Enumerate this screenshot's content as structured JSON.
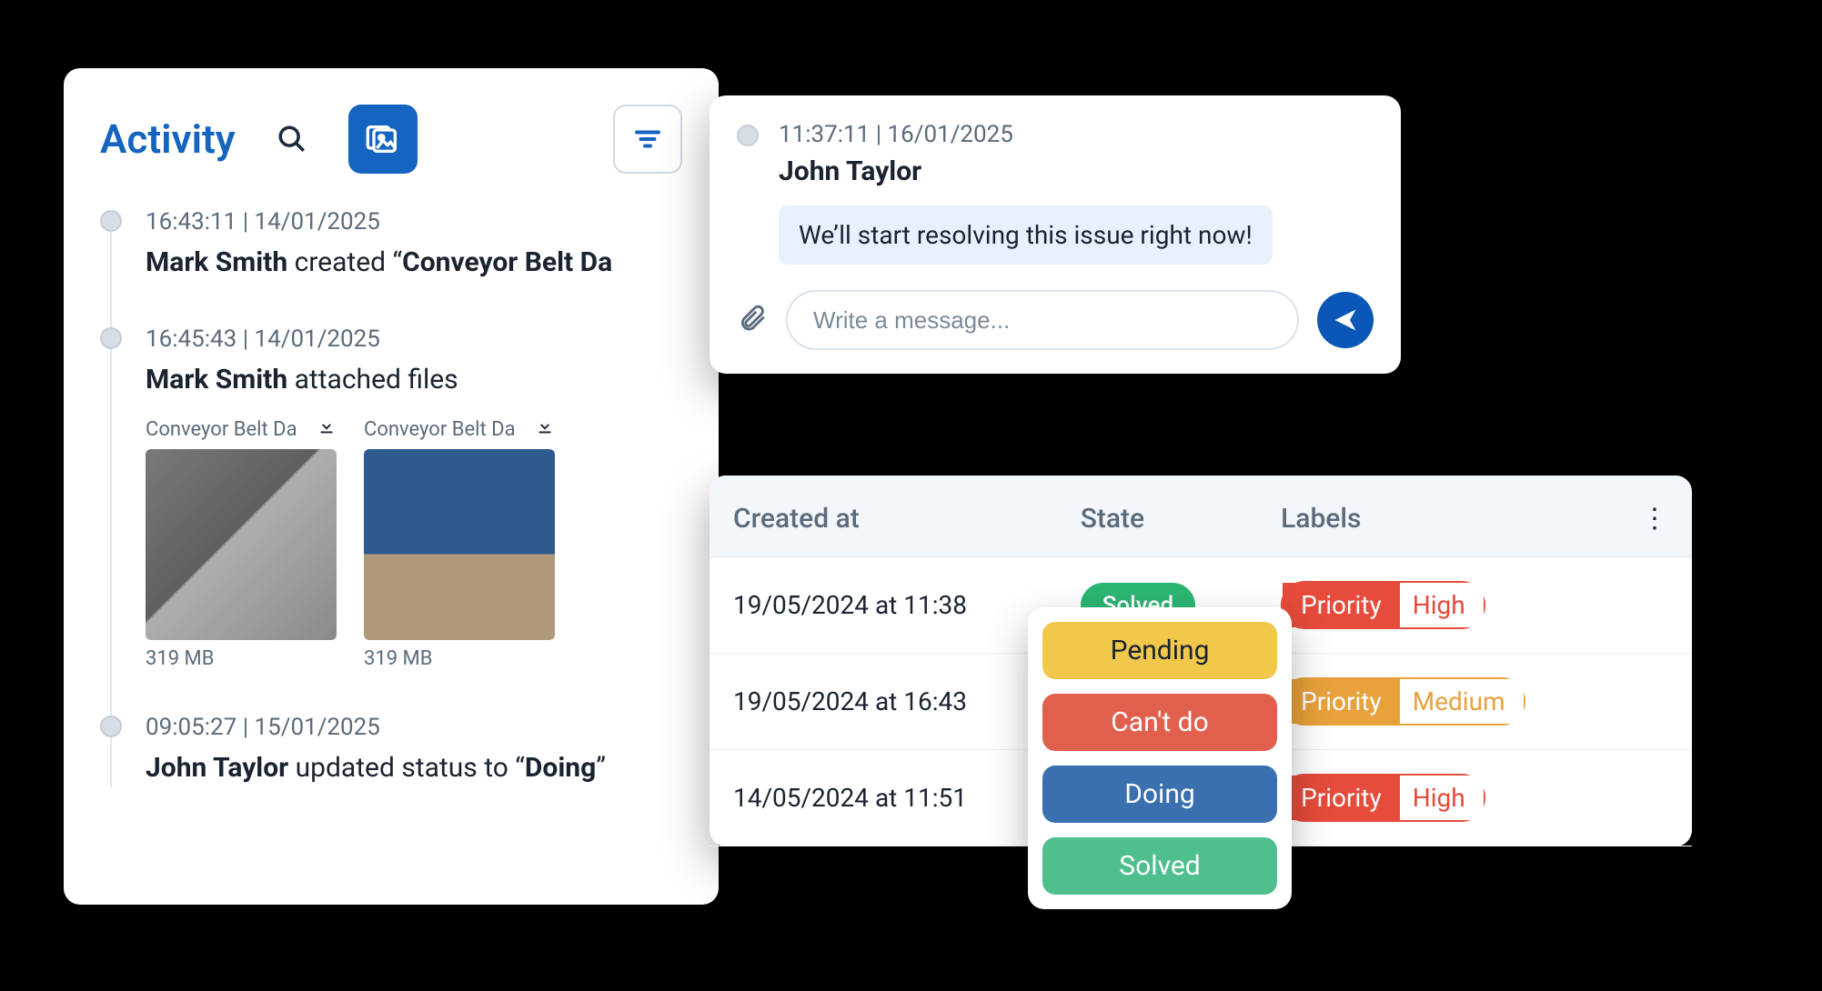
{
  "colors": {
    "brand": "#1565c0",
    "brand_dark": "#0b57b8",
    "muted": "#5b6b7c",
    "ink": "#1a2330",
    "chat_bubble_bg": "#e7f1fb",
    "table_header_bg": "#f3f6fa",
    "border": "#e3e8ef"
  },
  "activity": {
    "title": "Activity",
    "items": [
      {
        "time": "16:43:11 | 14/01/2025",
        "user": "Mark Smith",
        "verb": " created “",
        "subject": "Conveyor Belt Da",
        "tail": ""
      },
      {
        "time": "16:45:43 | 14/01/2025",
        "user": "Mark Smith",
        "verb": " attached files",
        "subject": "",
        "tail": "",
        "attachments": [
          {
            "name": "Conveyor Belt Da",
            "size": "319 MB"
          },
          {
            "name": "Conveyor Belt Da",
            "size": "319 MB"
          }
        ]
      },
      {
        "time": "09:05:27 | 15/01/2025",
        "user": "John Taylor",
        "verb": " updated status to  “",
        "subject": "Doing",
        "tail": "”"
      }
    ]
  },
  "chat": {
    "time": "11:37:11 | 16/01/2025",
    "user": "John Taylor",
    "message": "We’ll start resolving this issue right now!",
    "placeholder": "Write a message..."
  },
  "table": {
    "columns": [
      "Created at",
      "State",
      "Labels"
    ],
    "rows": [
      {
        "created": "19/05/2024 at 11:38",
        "state": {
          "text": "Solved",
          "bg": "#2bb673"
        },
        "label": {
          "key": "Priority",
          "value": "High",
          "color": "#e64b3b"
        }
      },
      {
        "created": "19/05/2024 at 16:43",
        "state": null,
        "label": {
          "key": "Priority",
          "value": "Medium",
          "color": "#e9a13b"
        }
      },
      {
        "created": "14/05/2024 at 11:51",
        "state": null,
        "label": {
          "key": "Priority",
          "value": "High",
          "color": "#e64b3b"
        }
      }
    ],
    "state_options": [
      {
        "text": "Pending",
        "bg": "#f2c84b",
        "fg": "#1a2330"
      },
      {
        "text": "Can't do",
        "bg": "#e0604d",
        "fg": "#ffffff"
      },
      {
        "text": "Doing",
        "bg": "#3a6fb0",
        "fg": "#ffffff"
      },
      {
        "text": "Solved",
        "bg": "#4fc08d",
        "fg": "#ffffff"
      }
    ]
  }
}
